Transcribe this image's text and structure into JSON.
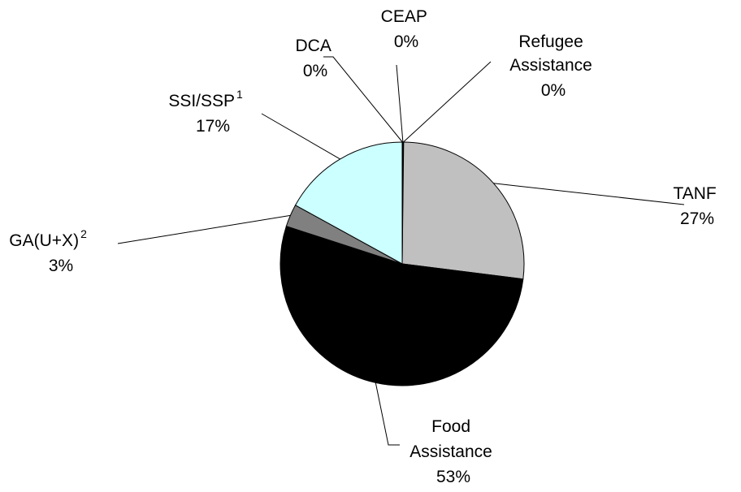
{
  "chart_data": {
    "type": "pie",
    "title": "",
    "categories": [
      "TANF",
      "Food Assistance",
      "GA(U+X)",
      "SSI/SSP",
      "DCA",
      "CEAP",
      "Refugee Assistance"
    ],
    "values": [
      27,
      53,
      3,
      17,
      0,
      0,
      0
    ],
    "labels": [
      {
        "name": "TANF",
        "lines": [
          "TANF"
        ],
        "value": "27%"
      },
      {
        "name": "Food Assistance",
        "lines": [
          "Food",
          "Assistance"
        ],
        "value": "53%"
      },
      {
        "name": "GA(U+X)",
        "lines": [
          "GA(U+X)"
        ],
        "sup": "2",
        "value": "3%"
      },
      {
        "name": "SSI/SSP",
        "lines": [
          "SSI/SSP"
        ],
        "sup": "1",
        "value": "17%"
      },
      {
        "name": "DCA",
        "lines": [
          "DCA"
        ],
        "value": "0%"
      },
      {
        "name": "CEAP",
        "lines": [
          "CEAP"
        ],
        "value": "0%"
      },
      {
        "name": "Refugee Assistance",
        "lines": [
          "Refugee",
          "Assistance"
        ],
        "value": "0%"
      }
    ],
    "colors": [
      "#c0c0c0",
      "#000000",
      "#808080",
      "#ccffff",
      "#99ccff",
      "#993366",
      "#000080"
    ],
    "legend": "none"
  }
}
